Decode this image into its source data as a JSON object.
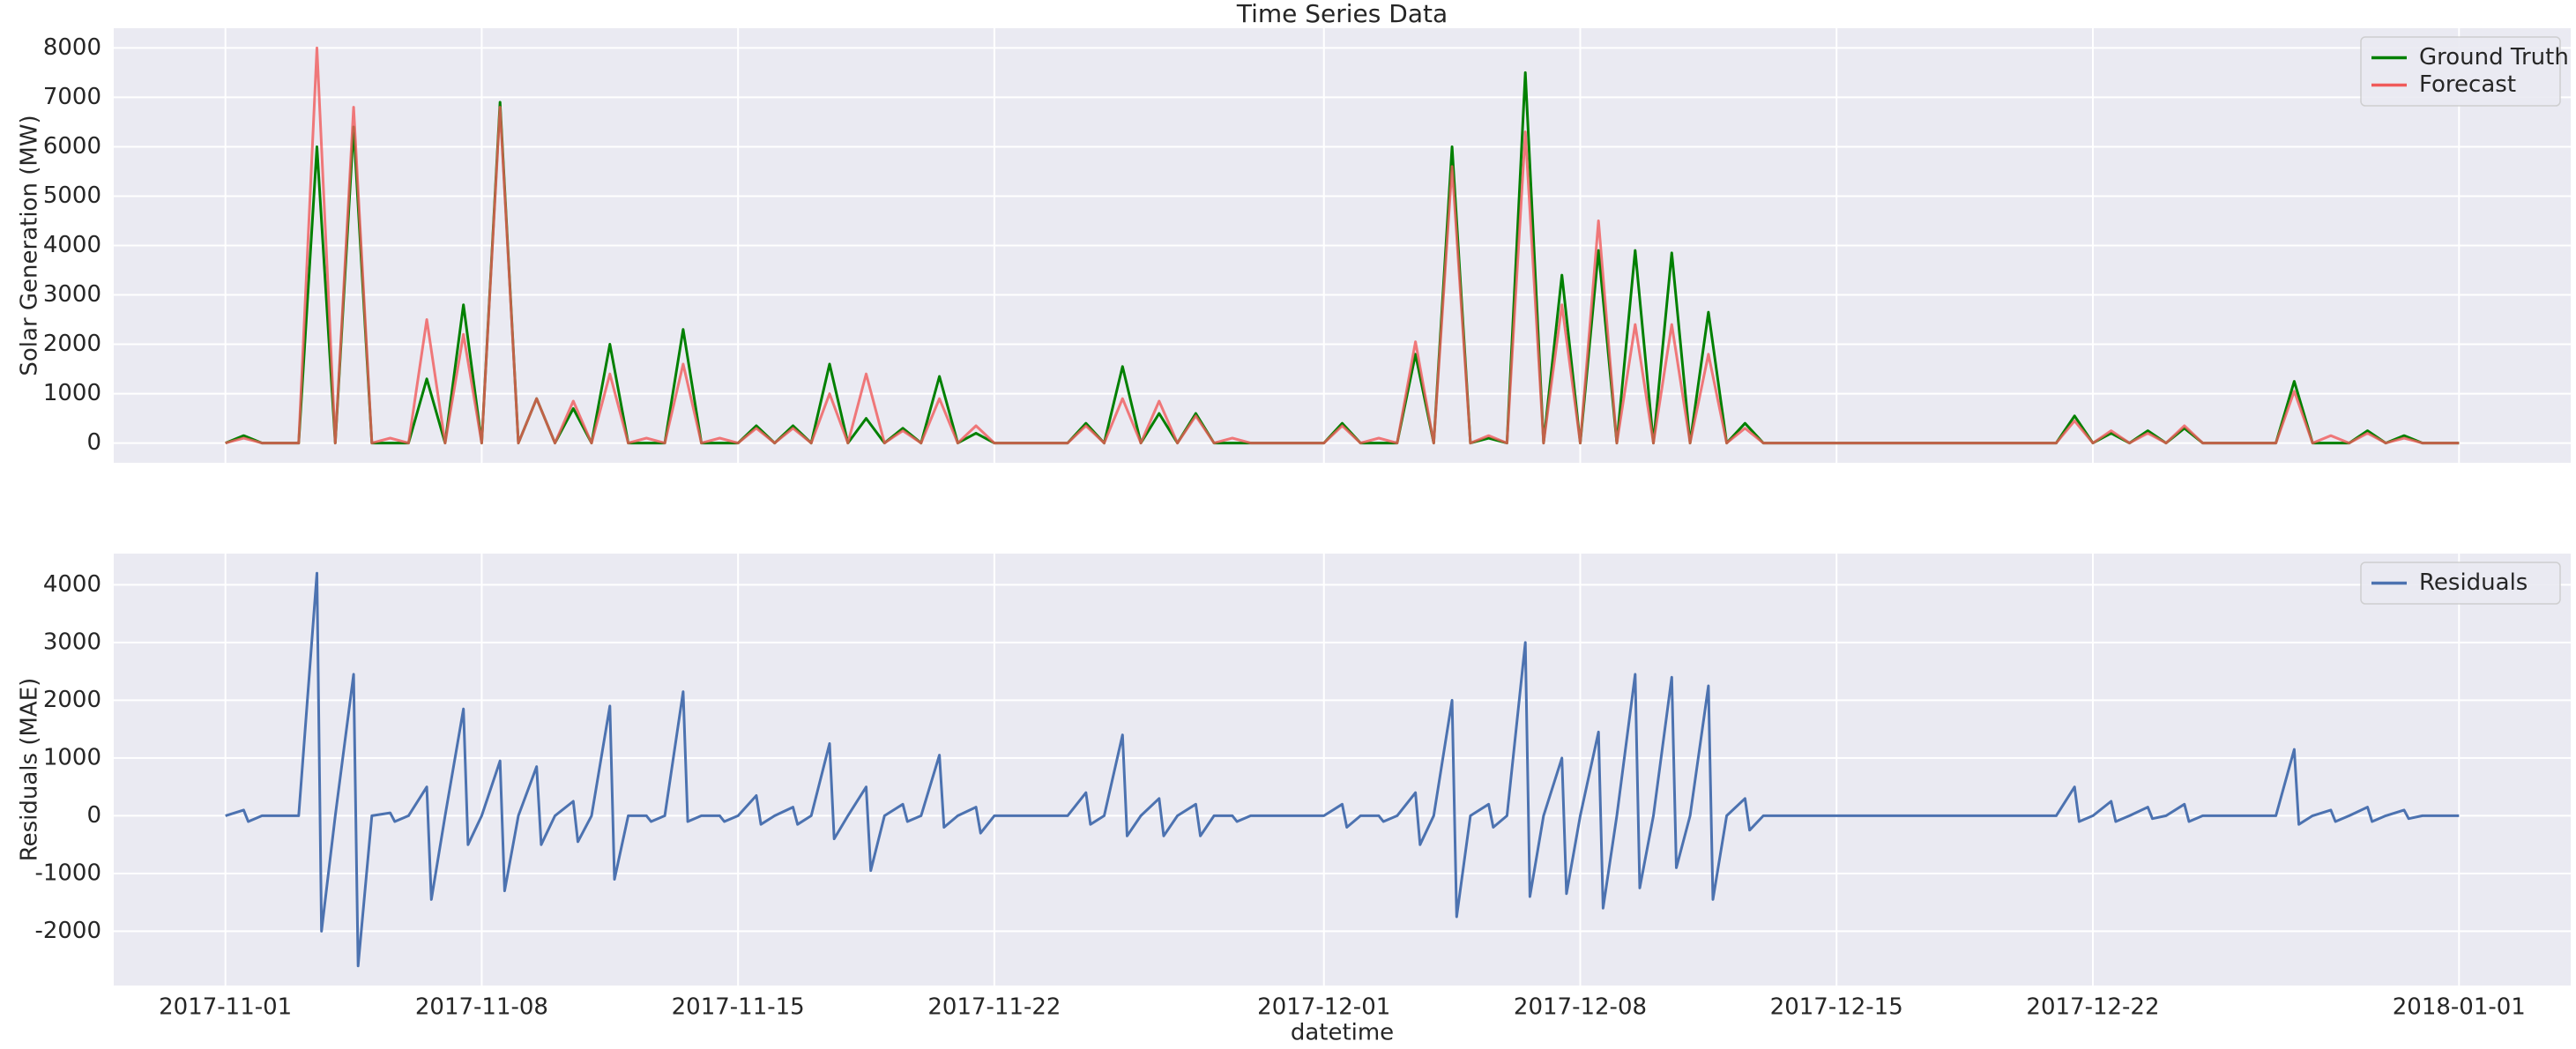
{
  "chart_data": [
    {
      "type": "line",
      "title": "Time Series Data",
      "ylabel": "Solar Generation (MW)",
      "x": [
        "2017-11-01T00:00",
        "2017-11-01T12:00",
        "2017-11-02T00:00",
        "2017-11-03T00:00",
        "2017-11-03T12:00",
        "2017-11-04T00:00",
        "2017-11-04T12:00",
        "2017-11-05T00:00",
        "2017-11-05T12:00",
        "2017-11-06T00:00",
        "2017-11-06T12:00",
        "2017-11-07T00:00",
        "2017-11-07T12:00",
        "2017-11-08T00:00",
        "2017-11-08T12:00",
        "2017-11-09T00:00",
        "2017-11-09T12:00",
        "2017-11-10T00:00",
        "2017-11-10T12:00",
        "2017-11-11T00:00",
        "2017-11-11T12:00",
        "2017-11-12T00:00",
        "2017-11-12T12:00",
        "2017-11-13T00:00",
        "2017-11-13T12:00",
        "2017-11-14T00:00",
        "2017-11-14T12:00",
        "2017-11-15T00:00",
        "2017-11-15T12:00",
        "2017-11-16T00:00",
        "2017-11-16T12:00",
        "2017-11-17T00:00",
        "2017-11-17T12:00",
        "2017-11-18T00:00",
        "2017-11-18T12:00",
        "2017-11-19T00:00",
        "2017-11-19T12:00",
        "2017-11-20T00:00",
        "2017-11-20T12:00",
        "2017-11-21T00:00",
        "2017-11-21T12:00",
        "2017-11-22T00:00",
        "2017-11-23T00:00",
        "2017-11-24T00:00",
        "2017-11-24T12:00",
        "2017-11-25T00:00",
        "2017-11-25T12:00",
        "2017-11-26T00:00",
        "2017-11-26T12:00",
        "2017-11-27T00:00",
        "2017-11-27T12:00",
        "2017-11-28T00:00",
        "2017-11-28T12:00",
        "2017-11-29T00:00",
        "2017-11-30T00:00",
        "2017-12-01T00:00",
        "2017-12-01T12:00",
        "2017-12-02T00:00",
        "2017-12-02T12:00",
        "2017-12-03T00:00",
        "2017-12-03T12:00",
        "2017-12-04T00:00",
        "2017-12-04T12:00",
        "2017-12-05T00:00",
        "2017-12-05T12:00",
        "2017-12-06T00:00",
        "2017-12-06T12:00",
        "2017-12-07T00:00",
        "2017-12-07T12:00",
        "2017-12-08T00:00",
        "2017-12-08T12:00",
        "2017-12-09T00:00",
        "2017-12-09T12:00",
        "2017-12-10T00:00",
        "2017-12-10T12:00",
        "2017-12-11T00:00",
        "2017-12-11T12:00",
        "2017-12-12T00:00",
        "2017-12-12T12:00",
        "2017-12-13T00:00",
        "2017-12-14T00:00",
        "2017-12-15T00:00",
        "2017-12-16T00:00",
        "2017-12-17T00:00",
        "2017-12-18T00:00",
        "2017-12-19T00:00",
        "2017-12-20T00:00",
        "2017-12-21T00:00",
        "2017-12-21T12:00",
        "2017-12-22T00:00",
        "2017-12-22T12:00",
        "2017-12-23T00:00",
        "2017-12-23T12:00",
        "2017-12-24T00:00",
        "2017-12-24T12:00",
        "2017-12-25T00:00",
        "2017-12-26T00:00",
        "2017-12-27T00:00",
        "2017-12-27T12:00",
        "2017-12-28T00:00",
        "2017-12-28T12:00",
        "2017-12-29T00:00",
        "2017-12-29T12:00",
        "2017-12-30T00:00",
        "2017-12-30T12:00",
        "2017-12-31T00:00",
        "2018-01-01T00:00"
      ],
      "series": [
        {
          "name": "Ground Truth",
          "color": "#008000",
          "values": [
            0,
            150,
            0,
            0,
            6000,
            0,
            6400,
            0,
            0,
            0,
            1300,
            0,
            2800,
            0,
            6900,
            0,
            900,
            0,
            700,
            0,
            2000,
            0,
            0,
            0,
            2300,
            0,
            0,
            0,
            350,
            0,
            350,
            0,
            1600,
            0,
            500,
            0,
            300,
            0,
            1350,
            0,
            200,
            0,
            0,
            0,
            400,
            0,
            1550,
            0,
            600,
            0,
            600,
            0,
            0,
            0,
            0,
            0,
            400,
            0,
            0,
            0,
            1800,
            0,
            6000,
            0,
            100,
            0,
            7500,
            0,
            3400,
            0,
            3900,
            0,
            3900,
            0,
            3850,
            0,
            2650,
            0,
            400,
            0,
            0,
            0,
            0,
            0,
            0,
            0,
            0,
            0,
            550,
            0,
            200,
            0,
            250,
            0,
            300,
            0,
            0,
            0,
            1250,
            0,
            0,
            0,
            250,
            0,
            150,
            0,
            0
          ]
        },
        {
          "name": "Forecast",
          "color": "#f05a5a",
          "values": [
            0,
            100,
            0,
            0,
            8000,
            0,
            6800,
            0,
            100,
            0,
            2500,
            0,
            2200,
            0,
            6800,
            0,
            900,
            0,
            850,
            0,
            1400,
            0,
            100,
            0,
            1600,
            0,
            100,
            0,
            300,
            0,
            300,
            0,
            1000,
            0,
            1400,
            0,
            250,
            0,
            900,
            0,
            350,
            0,
            0,
            0,
            350,
            0,
            900,
            0,
            850,
            0,
            550,
            0,
            100,
            0,
            0,
            0,
            350,
            0,
            100,
            0,
            2050,
            0,
            5600,
            0,
            150,
            0,
            6300,
            0,
            2800,
            0,
            4500,
            0,
            2400,
            0,
            2400,
            0,
            1800,
            0,
            300,
            0,
            0,
            0,
            0,
            0,
            0,
            0,
            0,
            0,
            450,
            0,
            250,
            0,
            200,
            0,
            350,
            0,
            0,
            0,
            1050,
            0,
            150,
            0,
            200,
            0,
            100,
            0,
            0
          ]
        }
      ],
      "xlim": [
        "2017-10-28T22:48",
        "2018-01-04T01:12"
      ],
      "xticks": [
        "2017-11-01",
        "2017-11-08",
        "2017-11-15",
        "2017-11-22",
        "2017-12-01",
        "2017-12-08",
        "2017-12-15",
        "2017-12-22",
        "2018-01-01"
      ],
      "ylim": [
        -400,
        8400
      ],
      "yticks": [
        0,
        1000,
        2000,
        3000,
        4000,
        5000,
        6000,
        7000,
        8000
      ],
      "grid": true,
      "legend": "upper right"
    },
    {
      "type": "line",
      "ylabel": "Residuals (MAE)",
      "xlabel": "datetime",
      "x": [
        "2017-11-01T00:00",
        "2017-11-01T12:00",
        "2017-11-01T15:00",
        "2017-11-02T00:00",
        "2017-11-03T00:00",
        "2017-11-03T12:00",
        "2017-11-03T15:00",
        "2017-11-04T00:00",
        "2017-11-04T12:00",
        "2017-11-04T15:00",
        "2017-11-05T00:00",
        "2017-11-05T12:00",
        "2017-11-05T15:00",
        "2017-11-06T00:00",
        "2017-11-06T12:00",
        "2017-11-06T15:00",
        "2017-11-07T00:00",
        "2017-11-07T12:00",
        "2017-11-07T15:00",
        "2017-11-08T00:00",
        "2017-11-08T12:00",
        "2017-11-08T15:00",
        "2017-11-09T00:00",
        "2017-11-09T12:00",
        "2017-11-09T15:00",
        "2017-11-10T00:00",
        "2017-11-10T12:00",
        "2017-11-10T15:00",
        "2017-11-11T00:00",
        "2017-11-11T12:00",
        "2017-11-11T15:00",
        "2017-11-12T00:00",
        "2017-11-12T12:00",
        "2017-11-12T15:00",
        "2017-11-13T00:00",
        "2017-11-13T12:00",
        "2017-11-13T15:00",
        "2017-11-14T00:00",
        "2017-11-14T12:00",
        "2017-11-14T15:00",
        "2017-11-15T00:00",
        "2017-11-15T12:00",
        "2017-11-15T15:00",
        "2017-11-16T00:00",
        "2017-11-16T12:00",
        "2017-11-16T15:00",
        "2017-11-17T00:00",
        "2017-11-17T12:00",
        "2017-11-17T15:00",
        "2017-11-18T00:00",
        "2017-11-18T12:00",
        "2017-11-18T15:00",
        "2017-11-19T00:00",
        "2017-11-19T12:00",
        "2017-11-19T15:00",
        "2017-11-20T00:00",
        "2017-11-20T12:00",
        "2017-11-20T15:00",
        "2017-11-21T00:00",
        "2017-11-21T12:00",
        "2017-11-21T15:00",
        "2017-11-22T00:00",
        "2017-11-23T00:00",
        "2017-11-24T00:00",
        "2017-11-24T12:00",
        "2017-11-24T15:00",
        "2017-11-25T00:00",
        "2017-11-25T12:00",
        "2017-11-25T15:00",
        "2017-11-26T00:00",
        "2017-11-26T12:00",
        "2017-11-26T15:00",
        "2017-11-27T00:00",
        "2017-11-27T12:00",
        "2017-11-27T15:00",
        "2017-11-28T00:00",
        "2017-11-28T12:00",
        "2017-11-28T15:00",
        "2017-11-29T00:00",
        "2017-11-30T00:00",
        "2017-12-01T00:00",
        "2017-12-01T12:00",
        "2017-12-01T15:00",
        "2017-12-02T00:00",
        "2017-12-02T12:00",
        "2017-12-02T15:00",
        "2017-12-03T00:00",
        "2017-12-03T12:00",
        "2017-12-03T15:00",
        "2017-12-04T00:00",
        "2017-12-04T12:00",
        "2017-12-04T15:00",
        "2017-12-05T00:00",
        "2017-12-05T12:00",
        "2017-12-05T15:00",
        "2017-12-06T00:00",
        "2017-12-06T12:00",
        "2017-12-06T15:00",
        "2017-12-07T00:00",
        "2017-12-07T12:00",
        "2017-12-07T15:00",
        "2017-12-08T00:00",
        "2017-12-08T12:00",
        "2017-12-08T15:00",
        "2017-12-09T00:00",
        "2017-12-09T12:00",
        "2017-12-09T15:00",
        "2017-12-10T00:00",
        "2017-12-10T12:00",
        "2017-12-10T15:00",
        "2017-12-11T00:00",
        "2017-12-11T12:00",
        "2017-12-11T15:00",
        "2017-12-12T00:00",
        "2017-12-12T12:00",
        "2017-12-12T15:00",
        "2017-12-13T00:00",
        "2017-12-14T00:00",
        "2017-12-15T00:00",
        "2017-12-16T00:00",
        "2017-12-17T00:00",
        "2017-12-18T00:00",
        "2017-12-19T00:00",
        "2017-12-20T00:00",
        "2017-12-21T00:00",
        "2017-12-21T12:00",
        "2017-12-21T15:00",
        "2017-12-22T00:00",
        "2017-12-22T12:00",
        "2017-12-22T15:00",
        "2017-12-23T00:00",
        "2017-12-23T12:00",
        "2017-12-23T15:00",
        "2017-12-24T00:00",
        "2017-12-24T12:00",
        "2017-12-24T15:00",
        "2017-12-25T00:00",
        "2017-12-26T00:00",
        "2017-12-27T00:00",
        "2017-12-27T12:00",
        "2017-12-27T15:00",
        "2017-12-28T00:00",
        "2017-12-28T12:00",
        "2017-12-28T15:00",
        "2017-12-29T00:00",
        "2017-12-29T12:00",
        "2017-12-29T15:00",
        "2017-12-30T00:00",
        "2017-12-30T12:00",
        "2017-12-30T15:00",
        "2017-12-31T00:00",
        "2018-01-01T00:00"
      ],
      "series": [
        {
          "name": "Residuals",
          "color": "#4c72b0",
          "values": [
            0,
            100,
            -100,
            0,
            0,
            4200,
            -2000,
            0,
            2450,
            -2600,
            0,
            50,
            -100,
            0,
            500,
            -1450,
            0,
            1850,
            -500,
            0,
            950,
            -1300,
            0,
            850,
            -500,
            0,
            250,
            -450,
            0,
            1900,
            -1100,
            0,
            0,
            -100,
            0,
            2150,
            -100,
            0,
            0,
            -100,
            0,
            350,
            -150,
            0,
            150,
            -150,
            0,
            1250,
            -400,
            0,
            500,
            -950,
            0,
            200,
            -100,
            0,
            1050,
            -200,
            0,
            150,
            -300,
            0,
            0,
            0,
            400,
            -150,
            0,
            1400,
            -350,
            0,
            300,
            -350,
            0,
            200,
            -350,
            0,
            0,
            -100,
            0,
            0,
            0,
            200,
            -200,
            0,
            0,
            -100,
            0,
            400,
            -500,
            0,
            2000,
            -1750,
            0,
            200,
            -200,
            0,
            3000,
            -1400,
            0,
            1000,
            -1350,
            0,
            1450,
            -1600,
            0,
            2450,
            -1250,
            0,
            2400,
            -900,
            0,
            2250,
            -1450,
            0,
            300,
            -250,
            0,
            0,
            0,
            0,
            0,
            0,
            0,
            0,
            0,
            500,
            -100,
            0,
            250,
            -100,
            0,
            150,
            -50,
            0,
            200,
            -100,
            0,
            0,
            0,
            1150,
            -150,
            0,
            100,
            -100,
            0,
            150,
            -100,
            0,
            100,
            -50,
            0,
            0
          ]
        }
      ],
      "xlim": [
        "2017-10-28T22:48",
        "2018-01-04T01:12"
      ],
      "xticks": [
        "2017-11-01",
        "2017-11-08",
        "2017-11-15",
        "2017-11-22",
        "2017-12-01",
        "2017-12-08",
        "2017-12-15",
        "2017-12-22",
        "2018-01-01"
      ],
      "ylim": [
        -2940,
        4540
      ],
      "yticks": [
        -2000,
        -1000,
        0,
        1000,
        2000,
        3000,
        4000
      ],
      "grid": true,
      "legend": "upper right"
    }
  ]
}
